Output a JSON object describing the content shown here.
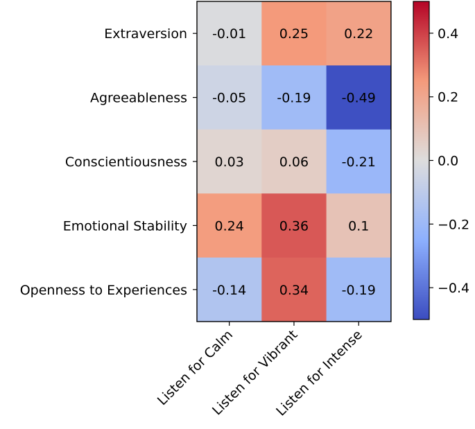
{
  "chart_data": {
    "type": "heatmap",
    "rows": [
      "Extraversion",
      "Agreeableness",
      "Conscientiousness",
      "Emotional Stability",
      "Openness to Experiences"
    ],
    "columns": [
      "Listen for Calm",
      "Listen for Vibrant",
      "Listen for Intense"
    ],
    "values": [
      [
        -0.01,
        0.25,
        0.22
      ],
      [
        -0.05,
        -0.19,
        -0.49
      ],
      [
        0.03,
        0.06,
        -0.21
      ],
      [
        0.24,
        0.36,
        0.1
      ],
      [
        -0.14,
        0.34,
        -0.19
      ]
    ],
    "value_labels": [
      [
        "-0.01",
        "0.25",
        "0.22"
      ],
      [
        "-0.05",
        "-0.19",
        "-0.49"
      ],
      [
        "0.03",
        "0.06",
        "-0.21"
      ],
      [
        "0.24",
        "0.36",
        "0.1"
      ],
      [
        "-0.14",
        "0.34",
        "-0.19"
      ]
    ],
    "colormap": "coolwarm",
    "vmin": -0.5,
    "vmax": 0.5,
    "colorbar": {
      "ticks": [
        0.4,
        0.2,
        0.0,
        -0.2,
        -0.4
      ],
      "tick_labels": [
        "0.4",
        "0.2",
        "0.0",
        "−0.2",
        "−0.4"
      ],
      "position": "right"
    },
    "title": "",
    "xlabel": "",
    "ylabel": ""
  }
}
